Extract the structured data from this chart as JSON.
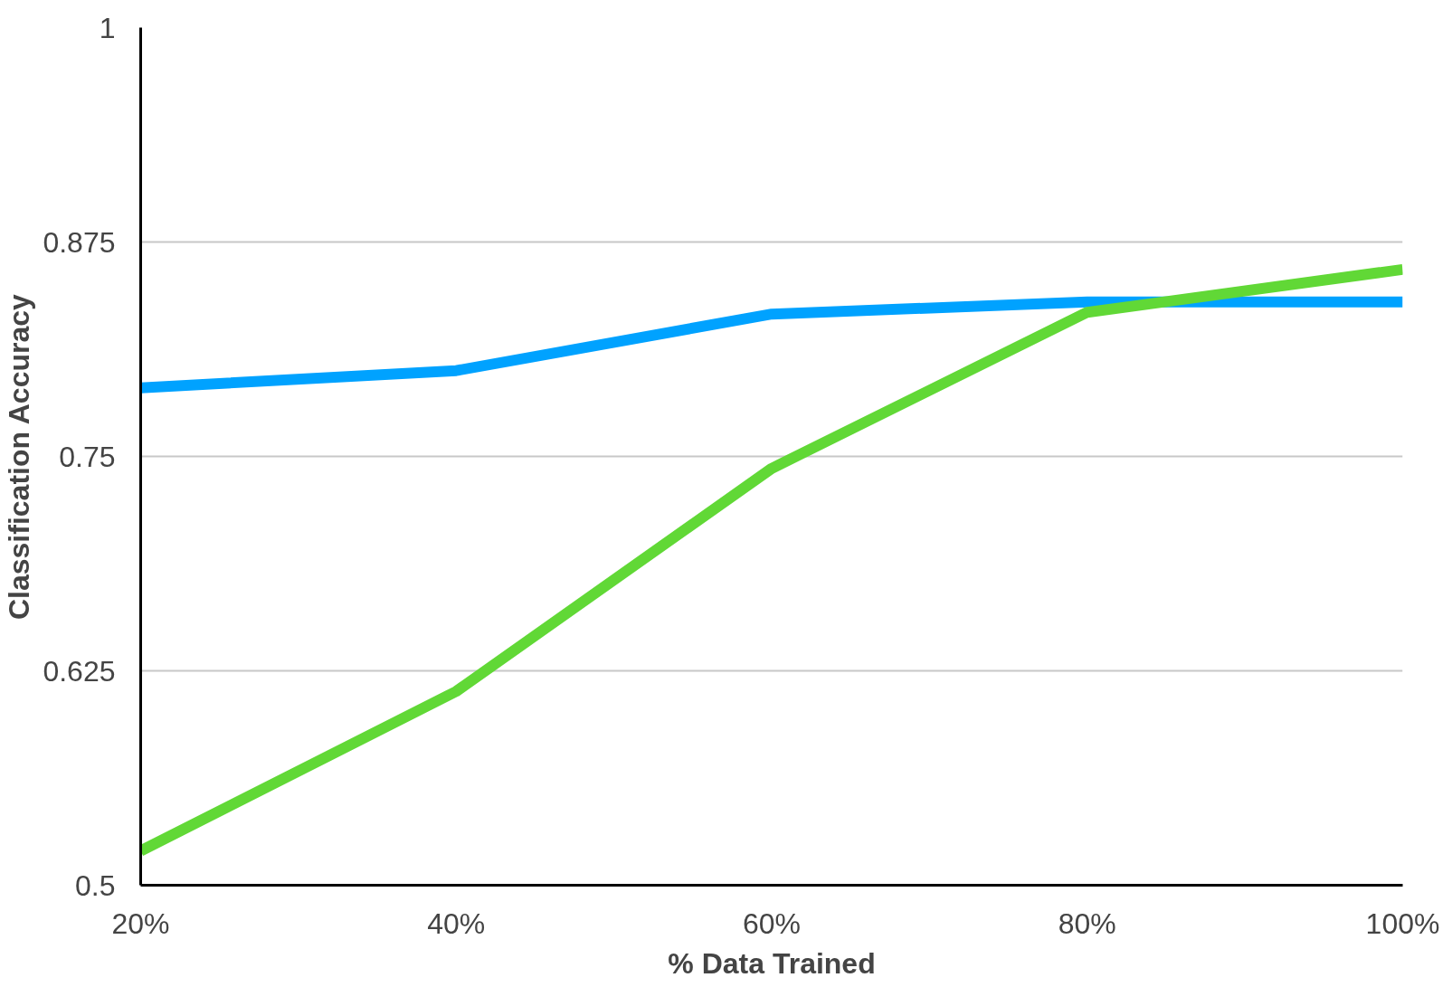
{
  "chart_data": {
    "type": "line",
    "xlabel": "% Data Trained",
    "ylabel": "Classification Accuracy",
    "categories": [
      "20%",
      "40%",
      "60%",
      "80%",
      "100%"
    ],
    "series": [
      {
        "color": "#00a2ff",
        "values": [
          0.79,
          0.8,
          0.833,
          0.84,
          0.84
        ]
      },
      {
        "color": "#61d836",
        "values": [
          0.52,
          0.613,
          0.743,
          0.834,
          0.859
        ]
      }
    ],
    "ylim": [
      0.5,
      1
    ],
    "yticks": [
      0.5,
      0.625,
      0.75,
      0.875,
      1
    ],
    "grid": "y"
  }
}
